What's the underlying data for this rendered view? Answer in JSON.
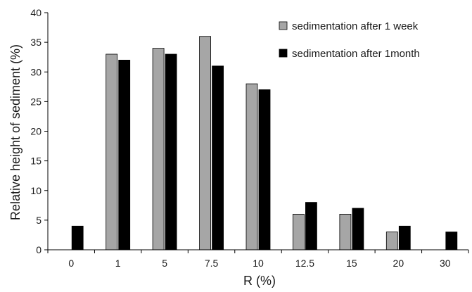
{
  "chart_data": {
    "type": "bar",
    "xlabel": "R (%)",
    "ylabel": "Relative height of sediment (%)",
    "ylim": [
      0,
      40
    ],
    "yticks": [
      0,
      5,
      10,
      15,
      20,
      25,
      30,
      35,
      40
    ],
    "categories": [
      "0",
      "1",
      "5",
      "7.5",
      "10",
      "12.5",
      "15",
      "20",
      "30"
    ],
    "series": [
      {
        "name": "sedimentation after 1 week",
        "color": "#a6a6a6",
        "values": [
          0,
          33,
          34,
          36,
          28,
          6,
          6,
          3,
          0
        ]
      },
      {
        "name": "sedimentation after 1month",
        "color": "#000000",
        "values": [
          4,
          32,
          33,
          31,
          27,
          8,
          7,
          4,
          3
        ]
      }
    ],
    "legend_position": "top-right",
    "grid": false
  }
}
